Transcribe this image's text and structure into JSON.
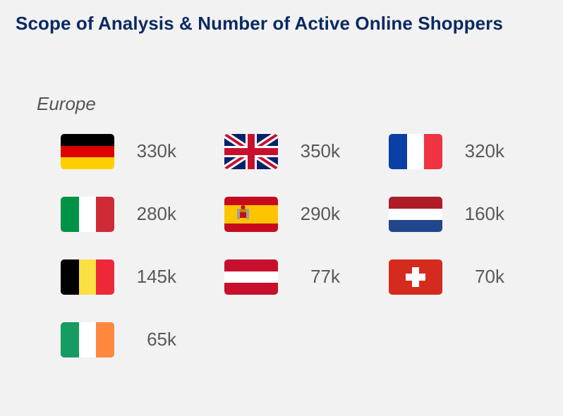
{
  "title": "Scope of Analysis & Number of Active Online Shoppers",
  "region": "Europe",
  "countries": [
    {
      "flag": "germany-flag-icon",
      "value": "330k"
    },
    {
      "flag": "united-kingdom-flag-icon",
      "value": "350k"
    },
    {
      "flag": "france-flag-icon",
      "value": "320k"
    },
    {
      "flag": "italy-flag-icon",
      "value": "280k"
    },
    {
      "flag": "spain-flag-icon",
      "value": "290k"
    },
    {
      "flag": "netherlands-flag-icon",
      "value": "160k"
    },
    {
      "flag": "belgium-flag-icon",
      "value": "145k"
    },
    {
      "flag": "austria-flag-icon",
      "value": "77k"
    },
    {
      "flag": "switzerland-flag-icon",
      "value": "70k"
    },
    {
      "flag": "ireland-flag-icon",
      "value": "65k"
    }
  ]
}
